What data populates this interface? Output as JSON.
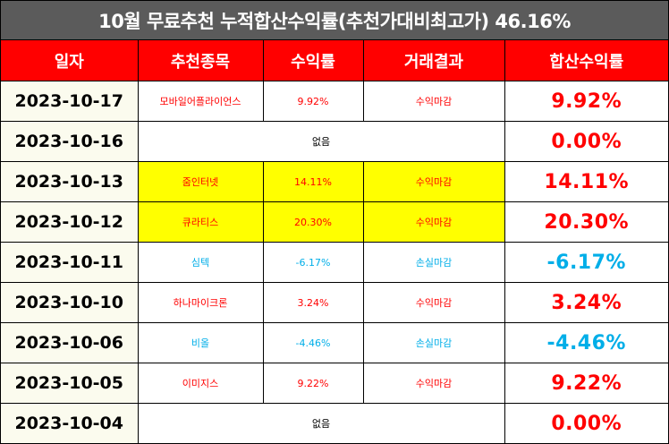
{
  "title": "10월 무료추천 누적합산수익률(추천가대비최고가) 46.16%",
  "headers": [
    "일자",
    "추천종목",
    "수익률",
    "거래결과",
    "합산수익률"
  ],
  "colors": {
    "header_bg": "#ff0000",
    "title_bg": "#5b5b5b",
    "highlight": "#ffff00",
    "profit": "#ff0000",
    "loss": "#00aee8"
  },
  "rows": [
    {
      "date": "2023-10-17",
      "stock": "모바일어플라이언스",
      "return": "9.92%",
      "result": "수익마감",
      "cumulative": "9.92%"
    },
    {
      "date": "2023-10-16",
      "none": "없음",
      "cumulative": "0.00%"
    },
    {
      "date": "2023-10-13",
      "stock": "줌인터넷",
      "return": "14.11%",
      "result": "수익마감",
      "cumulative": "14.11%"
    },
    {
      "date": "2023-10-12",
      "stock": "큐라티스",
      "return": "20.30%",
      "result": "수익마감",
      "cumulative": "20.30%"
    },
    {
      "date": "2023-10-11",
      "stock": "심텍",
      "return": "-6.17%",
      "result": "손실마감",
      "cumulative": "-6.17%"
    },
    {
      "date": "2023-10-10",
      "stock": "하나마이크론",
      "return": "3.24%",
      "result": "수익마감",
      "cumulative": "3.24%"
    },
    {
      "date": "2023-10-06",
      "stock": "비올",
      "return": "-4.46%",
      "result": "손실마감",
      "cumulative": "-4.46%"
    },
    {
      "date": "2023-10-05",
      "stock": "이미지스",
      "return": "9.22%",
      "result": "수익마감",
      "cumulative": "9.22%"
    },
    {
      "date": "2023-10-04",
      "none": "없음",
      "cumulative": "0.00%"
    }
  ]
}
